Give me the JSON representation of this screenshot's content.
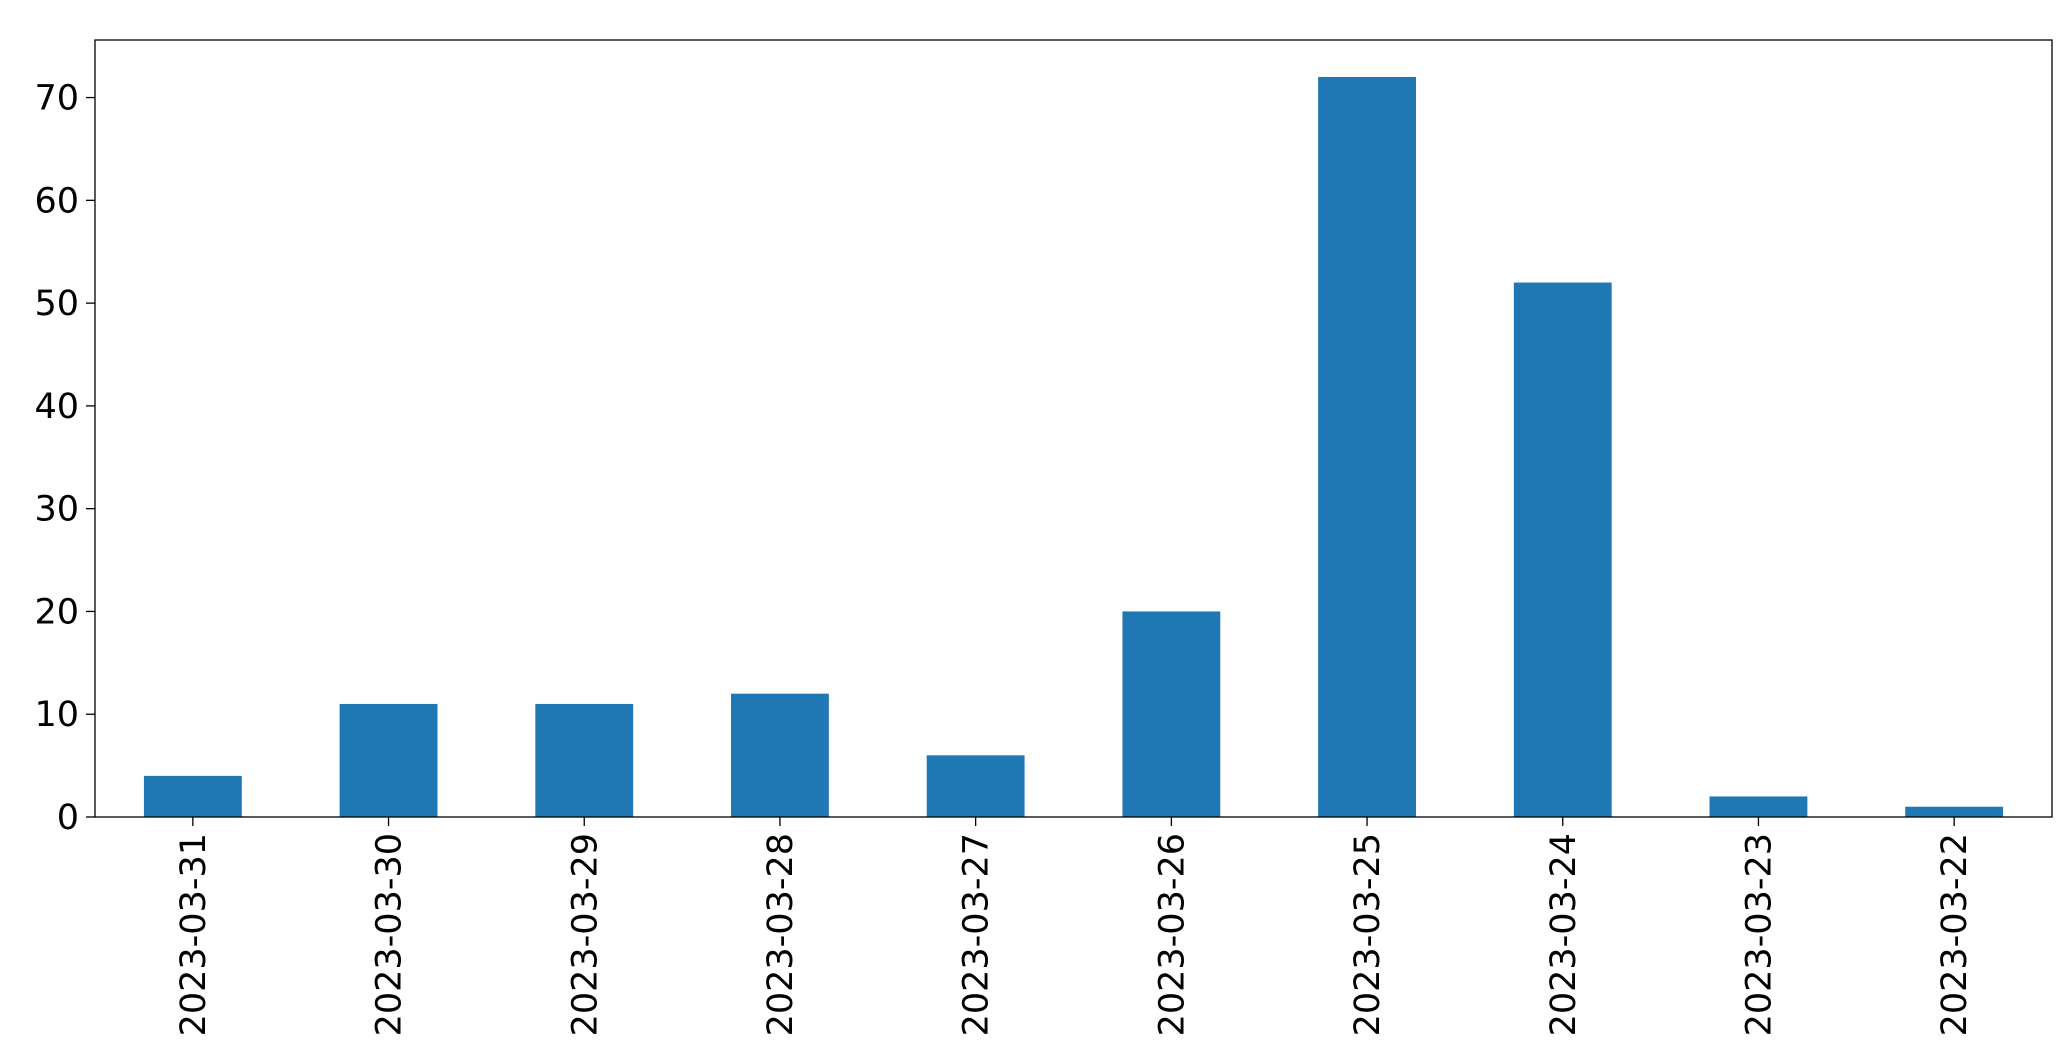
{
  "chart_data": {
    "type": "bar",
    "categories": [
      "2023-03-31",
      "2023-03-30",
      "2023-03-29",
      "2023-03-28",
      "2023-03-27",
      "2023-03-26",
      "2023-03-25",
      "2023-03-24",
      "2023-03-23",
      "2023-03-22"
    ],
    "values": [
      4,
      11,
      11,
      12,
      6,
      20,
      72,
      52,
      2,
      1
    ],
    "color": "#1f77b4",
    "ylim": [
      0,
      75.6
    ],
    "yticks": [
      0,
      10,
      20,
      30,
      40,
      50,
      60,
      70
    ],
    "grid": false
  }
}
